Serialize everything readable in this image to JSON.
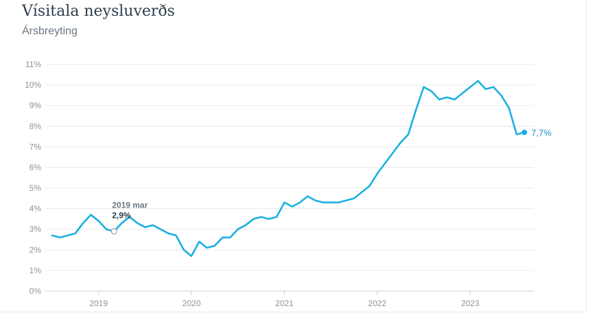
{
  "header": {
    "title": "Vísitala neysluverðs",
    "subtitle": "Ársbreyting"
  },
  "colors": {
    "line": "#1ab0e0",
    "grid": "#e6eaed",
    "axis": "#c9cfd4"
  },
  "tooltip": {
    "date_label": "2019 mar",
    "value_label": "2,9%"
  },
  "end_label": "7,7%",
  "chart_data": {
    "type": "line",
    "title": "Vísitala neysluverðs",
    "subtitle": "Ársbreyting",
    "xlabel": "",
    "ylabel": "",
    "ylim": [
      0,
      11
    ],
    "yticks": [
      "0%",
      "1%",
      "2%",
      "3%",
      "4%",
      "5%",
      "6%",
      "7%",
      "8%",
      "9%",
      "10%",
      "11%"
    ],
    "xticks": [
      "2019",
      "2020",
      "2021",
      "2022",
      "2023"
    ],
    "grid": true,
    "x_start": "2018 júl",
    "x": [
      "2018-07",
      "2018-08",
      "2018-09",
      "2018-10",
      "2018-11",
      "2018-12",
      "2019-01",
      "2019-02",
      "2019-03",
      "2019-04",
      "2019-05",
      "2019-06",
      "2019-07",
      "2019-08",
      "2019-09",
      "2019-10",
      "2019-11",
      "2019-12",
      "2020-01",
      "2020-02",
      "2020-03",
      "2020-04",
      "2020-05",
      "2020-06",
      "2020-07",
      "2020-08",
      "2020-09",
      "2020-10",
      "2020-11",
      "2020-12",
      "2021-01",
      "2021-02",
      "2021-03",
      "2021-04",
      "2021-05",
      "2021-06",
      "2021-07",
      "2021-08",
      "2021-09",
      "2021-10",
      "2021-11",
      "2021-12",
      "2022-01",
      "2022-02",
      "2022-03",
      "2022-04",
      "2022-05",
      "2022-06",
      "2022-07",
      "2022-08",
      "2022-09",
      "2022-10",
      "2022-11",
      "2022-12",
      "2023-01",
      "2023-02",
      "2023-03",
      "2023-04",
      "2023-05",
      "2023-06",
      "2023-07",
      "2023-08"
    ],
    "series": [
      {
        "values": [
          2.7,
          2.6,
          2.7,
          2.8,
          3.3,
          3.7,
          3.4,
          3.0,
          2.9,
          3.3,
          3.6,
          3.3,
          3.1,
          3.2,
          3.0,
          2.8,
          2.7,
          2.0,
          1.7,
          2.4,
          2.1,
          2.2,
          2.6,
          2.6,
          3.0,
          3.2,
          3.5,
          3.6,
          3.5,
          3.6,
          4.3,
          4.1,
          4.3,
          4.6,
          4.4,
          4.3,
          4.3,
          4.3,
          4.4,
          4.5,
          4.8,
          5.1,
          5.7,
          6.2,
          6.7,
          7.2,
          7.6,
          8.8,
          9.9,
          9.7,
          9.3,
          9.4,
          9.3,
          9.6,
          9.9,
          10.2,
          9.8,
          9.9,
          9.5,
          8.9,
          7.6,
          7.7
        ]
      }
    ]
  }
}
